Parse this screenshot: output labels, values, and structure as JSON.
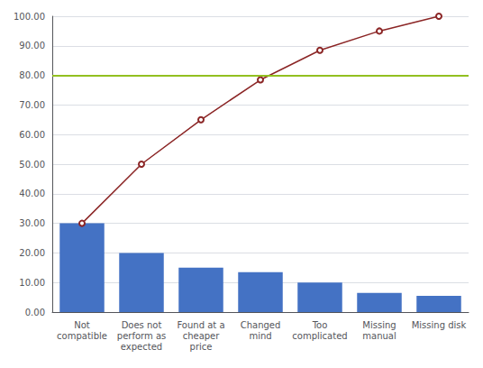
{
  "chart_data": {
    "type": "bar",
    "categories": [
      "Not\ncompatible",
      "Does not\nperform as\nexpected",
      "Found at a\ncheaper\nprice",
      "Changed\nmind",
      "Too\ncomplicated",
      "Missing\nmanual",
      "Missing disk"
    ],
    "series": [
      {
        "type": "bar",
        "color": "#4472C4",
        "values": [
          30.0,
          20.0,
          15.0,
          13.5,
          10.0,
          6.5,
          5.5
        ]
      },
      {
        "type": "line",
        "color": "#8B2525",
        "values": [
          30.0,
          50.0,
          65.0,
          78.5,
          88.5,
          95.0,
          100.0
        ]
      }
    ],
    "hlines": [
      {
        "y": 80.0,
        "color": "#92C020"
      }
    ],
    "ylim": [
      0,
      100
    ],
    "yticks": [
      {
        "value": 0,
        "label": "0.00"
      },
      {
        "value": 10,
        "label": "10.00"
      },
      {
        "value": 20,
        "label": "20.00"
      },
      {
        "value": 30,
        "label": "30.00"
      },
      {
        "value": 40,
        "label": "40.00"
      },
      {
        "value": 50,
        "label": "50.00"
      },
      {
        "value": 60,
        "label": "60.00"
      },
      {
        "value": 70,
        "label": "70.00"
      },
      {
        "value": 80,
        "label": "80.00"
      },
      {
        "value": 90,
        "label": "90.00"
      },
      {
        "value": 100,
        "label": "100.00"
      }
    ],
    "grid": true
  }
}
